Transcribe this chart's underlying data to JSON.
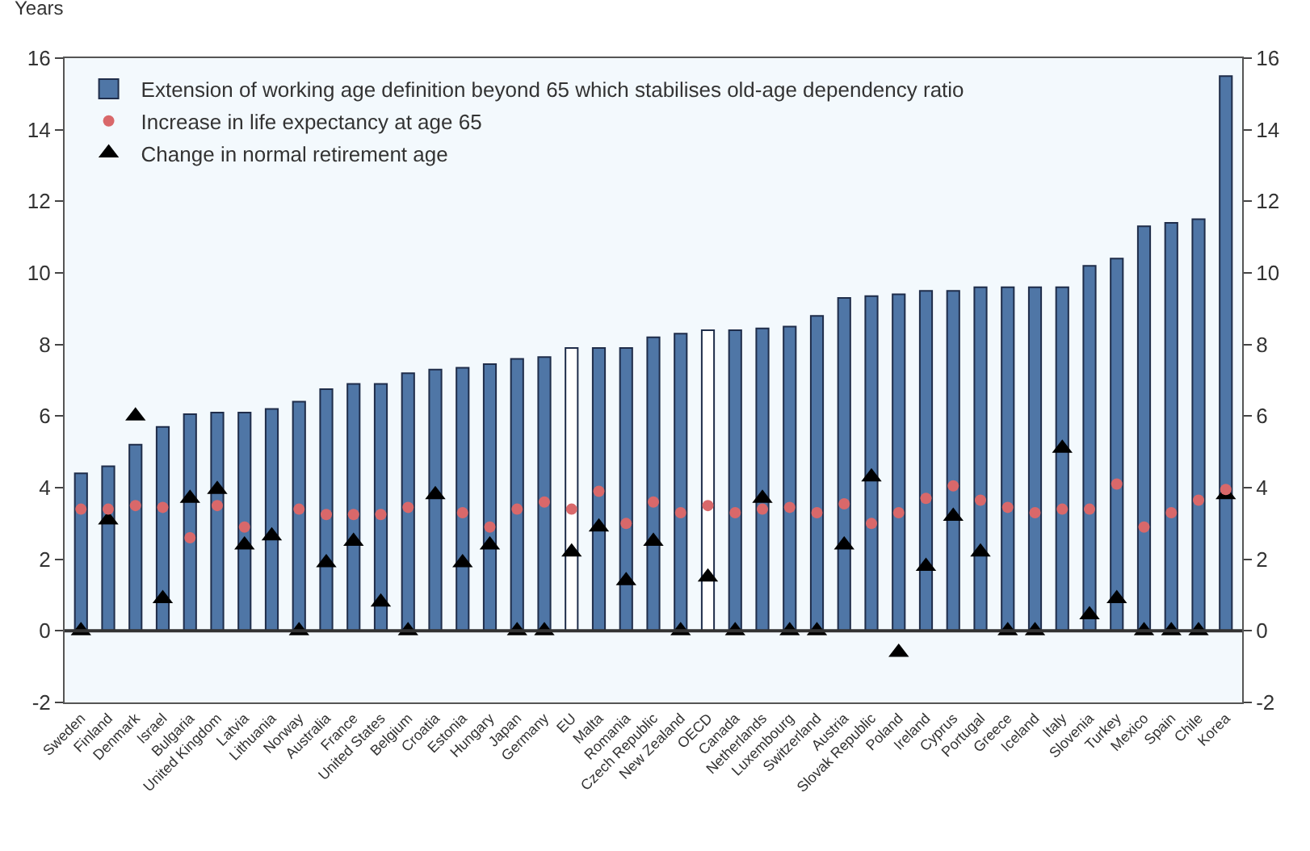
{
  "chart_data": {
    "type": "bar",
    "ylabel": "Years",
    "categories": [
      "Sweden",
      "Finland",
      "Denmark",
      "Israel",
      "Bulgaria",
      "United Kingdom",
      "Latvia",
      "Lithuania",
      "Norway",
      "Australia",
      "France",
      "United States",
      "Belgium",
      "Croatia",
      "Estonia",
      "Hungary",
      "Japan",
      "Germany",
      "EU",
      "Malta",
      "Romania",
      "Czech Republic",
      "New Zealand",
      "OECD",
      "Canada",
      "Netherlands",
      "Luxembourg",
      "Switzerland",
      "Austria",
      "Slovak Republic",
      "Poland",
      "Ireland",
      "Cyprus",
      "Portugal",
      "Greece",
      "Iceland",
      "Italy",
      "Slovenia",
      "Turkey",
      "Mexico",
      "Spain",
      "Chile",
      "Korea"
    ],
    "series": [
      {
        "name": "Extension of working age definition beyond 65 which stabilises old-age dependency ratio",
        "color": "#4f76a6",
        "colors": [
          "#4f76a6",
          "#4f76a6",
          "#4f76a6",
          "#4f76a6",
          "#4f76a6",
          "#4f76a6",
          "#4f76a6",
          "#4f76a6",
          "#4f76a6",
          "#4f76a6",
          "#4f76a6",
          "#4f76a6",
          "#4f76a6",
          "#4f76a6",
          "#4f76a6",
          "#4f76a6",
          "#4f76a6",
          "#4f76a6",
          "#ffffff",
          "#4f76a6",
          "#4f76a6",
          "#4f76a6",
          "#4f76a6",
          "#ffffff",
          "#4f76a6",
          "#4f76a6",
          "#4f76a6",
          "#4f76a6",
          "#4f76a6",
          "#4f76a6",
          "#4f76a6",
          "#4f76a6",
          "#4f76a6",
          "#4f76a6",
          "#4f76a6",
          "#4f76a6",
          "#4f76a6",
          "#4f76a6",
          "#4f76a6",
          "#4f76a6",
          "#4f76a6",
          "#4f76a6",
          "#4f76a6"
        ],
        "values": [
          4.4,
          4.6,
          5.2,
          5.7,
          6.05,
          6.1,
          6.1,
          6.2,
          6.4,
          6.75,
          6.9,
          6.9,
          7.2,
          7.3,
          7.35,
          7.45,
          7.6,
          7.65,
          7.9,
          7.9,
          7.9,
          8.2,
          8.3,
          8.4,
          8.4,
          8.45,
          8.5,
          8.8,
          9.3,
          9.35,
          9.4,
          9.5,
          9.5,
          9.6,
          9.6,
          9.6,
          9.6,
          10.2,
          10.4,
          11.3,
          11.4,
          11.5,
          15.5
        ]
      },
      {
        "name": "Increase in life expectancy at age 65",
        "type": "scatter",
        "marker": "circle",
        "color": "#d9686a",
        "values": [
          3.4,
          3.4,
          3.5,
          3.45,
          2.6,
          3.5,
          2.9,
          null,
          3.4,
          3.25,
          3.25,
          3.25,
          3.45,
          null,
          3.3,
          2.9,
          3.4,
          3.6,
          3.4,
          3.9,
          3.0,
          3.6,
          3.3,
          3.5,
          3.3,
          3.4,
          3.45,
          3.3,
          3.55,
          3.0,
          3.3,
          3.7,
          4.05,
          3.65,
          3.45,
          3.3,
          3.4,
          3.4,
          4.1,
          2.9,
          3.3,
          3.65,
          3.95
        ]
      },
      {
        "name": "Change in normal retirement age",
        "type": "scatter",
        "marker": "triangle",
        "color": "#000000",
        "values": [
          0,
          3.1,
          6.0,
          0.9,
          3.7,
          3.95,
          2.4,
          2.65,
          0,
          1.9,
          2.5,
          0.8,
          0,
          3.8,
          1.9,
          2.4,
          0,
          0,
          2.2,
          2.9,
          1.4,
          2.5,
          0,
          1.5,
          0,
          3.7,
          0,
          0,
          2.4,
          4.3,
          -0.6,
          1.8,
          3.2,
          2.2,
          0,
          0,
          5.1,
          0.45,
          0.9,
          0,
          0,
          0,
          3.8
        ]
      }
    ],
    "ylim": [
      -2,
      16
    ],
    "yticks": [
      -2,
      0,
      2,
      4,
      6,
      8,
      10,
      12,
      14,
      16
    ],
    "y2lim": [
      -2,
      16
    ],
    "y2ticks": [
      -2,
      0,
      2,
      4,
      6,
      8,
      10,
      12,
      14,
      16
    ],
    "ref_lines": [
      {
        "axis": "y",
        "value": 0,
        "color": "#333333",
        "line_style": "solid"
      }
    ],
    "legend": "top left",
    "grid": false
  }
}
